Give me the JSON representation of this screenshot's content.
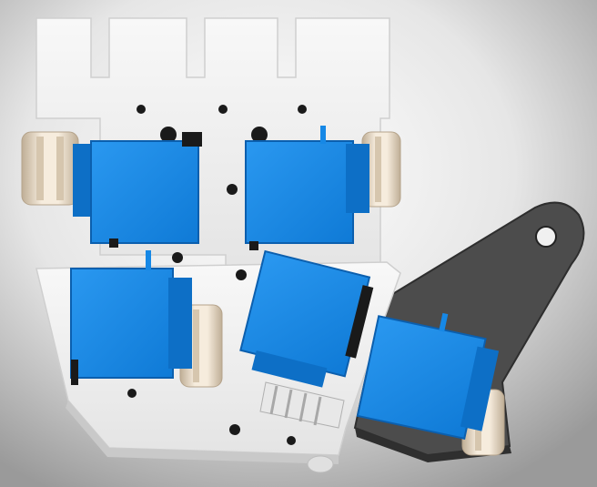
{
  "scene": {
    "subject": "robotic-hand-servo-assembly",
    "colors": {
      "background_light": "#f7f7f7",
      "background_dark": "#9a9a9a",
      "plate": "#f2f2f2",
      "plate_shade": "#d8d8d8",
      "servo_blue": "#1688e6",
      "servo_blue_dark": "#0b5fae",
      "bracket_gray": "#4a4a4a",
      "bracket_gray_dark": "#333333",
      "hole": "#1a1a1a",
      "spool_cream": "#ece0cf",
      "spool_shade": "#c9b8a1",
      "gear_white": "#e8e8e8"
    }
  }
}
